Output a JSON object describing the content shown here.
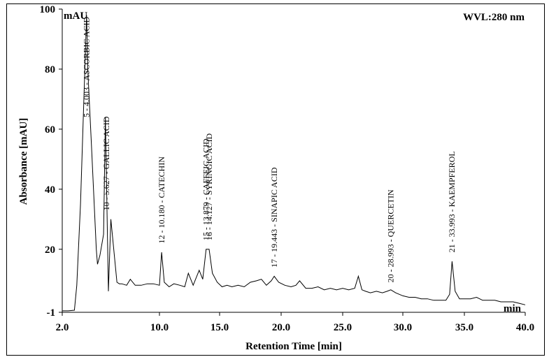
{
  "chart_data": {
    "type": "line",
    "title": "",
    "wavelength_label": "WVL:280 nm",
    "xlabel": "Retention Time [min]",
    "ylabel": "Absorbance [mAU]",
    "y_unit_label": "mAU",
    "x_unit_label": "min",
    "xlim": [
      2.0,
      40.0
    ],
    "ylim": [
      -1,
      100
    ],
    "x_ticks": [
      2.0,
      10.0,
      15.0,
      20.0,
      25.0,
      30.0,
      35.0,
      40.0
    ],
    "x_tick_labels": [
      "2.0",
      "10.0",
      "15.0",
      "20.0",
      "25.0",
      "30.0",
      "35.0",
      "40.0"
    ],
    "y_ticks": [
      -1,
      20,
      40,
      60,
      80,
      100
    ],
    "y_tick_labels": [
      "-1",
      "20",
      "40",
      "60",
      "80",
      "100"
    ],
    "grid": false,
    "series": [
      {
        "x": [
          2.0,
          2.5,
          3.0,
          3.2,
          3.5,
          4.0,
          4.1,
          4.4,
          4.8,
          4.9,
          5.1,
          5.4,
          5.55,
          5.8,
          6.0,
          6.5,
          6.7,
          6.9,
          7.3,
          7.6,
          8.0,
          8.5,
          9.0,
          9.5,
          10.0,
          10.18,
          10.4,
          10.8,
          11.2,
          11.7,
          12.1,
          12.4,
          12.8,
          13.3,
          13.6,
          13.88,
          14.13,
          14.4,
          14.8,
          15.2,
          15.6,
          16.0,
          16.5,
          17.0,
          17.5,
          18.0,
          18.4,
          18.8,
          19.2,
          19.44,
          19.8,
          20.3,
          20.8,
          21.2,
          21.5,
          22.0,
          22.5,
          23.0,
          23.5,
          24.0,
          24.5,
          25.0,
          25.5,
          26.0,
          26.3,
          26.6,
          26.9,
          27.3,
          27.8,
          28.3,
          28.7,
          29.0,
          29.4,
          30.0,
          30.5,
          31.0,
          31.5,
          32.0,
          32.5,
          33.0,
          33.5,
          33.8,
          34.0,
          34.25,
          34.6,
          35.0,
          35.5,
          36.0,
          36.5,
          37.0,
          37.5,
          38.0,
          38.5,
          39.0,
          39.5,
          40.0
        ],
        "y": [
          -0.5,
          -0.5,
          -0.3,
          8,
          35,
          98,
          80,
          55,
          20,
          15,
          18,
          25,
          64,
          6,
          30,
          9,
          8.5,
          8.5,
          8,
          10,
          8,
          8,
          8.5,
          8.5,
          8,
          19,
          9,
          7.5,
          8.5,
          8,
          7.5,
          12,
          8,
          13,
          10,
          20,
          20,
          12,
          9,
          7.5,
          8,
          7.5,
          8,
          7.5,
          9,
          9.5,
          10,
          8,
          9.5,
          11,
          9,
          8,
          7.5,
          8,
          9.5,
          7,
          7,
          7.5,
          6.5,
          7,
          6.5,
          7,
          6.5,
          7,
          11,
          6.5,
          6,
          5.5,
          6,
          5.5,
          6,
          6.5,
          5.5,
          4.5,
          4,
          4,
          3.5,
          3.5,
          3,
          3,
          3,
          5,
          16,
          6,
          3.5,
          3.5,
          3.5,
          4,
          3,
          3,
          3,
          2.5,
          2.5,
          2.5,
          2,
          1.5
        ]
      }
    ],
    "annotations": [
      {
        "text": "5 - 4.003 - ASCORBIC ACID",
        "x": 4.0,
        "y": 63
      },
      {
        "text": "10 - 5.627 - GALLIC ACID",
        "x": 5.63,
        "y": 32
      },
      {
        "text": "12 - 10.180 - CATECHIN",
        "x": 10.18,
        "y": 21
      },
      {
        "text": "15 - 13.879 - CAFFEIC ACID",
        "x": 13.88,
        "y": 22
      },
      {
        "text": "16 - 14.127 - SYRINGIC ACID",
        "x": 14.13,
        "y": 22
      },
      {
        "text": "17 - 19.443 - SINAPIC ACID",
        "x": 19.44,
        "y": 13
      },
      {
        "text": "20 - 28.993 - QUERCETIN",
        "x": 28.99,
        "y": 8
      },
      {
        "text": "21 - 33.993 - KAEMPFEROL",
        "x": 33.99,
        "y": 18
      }
    ]
  }
}
